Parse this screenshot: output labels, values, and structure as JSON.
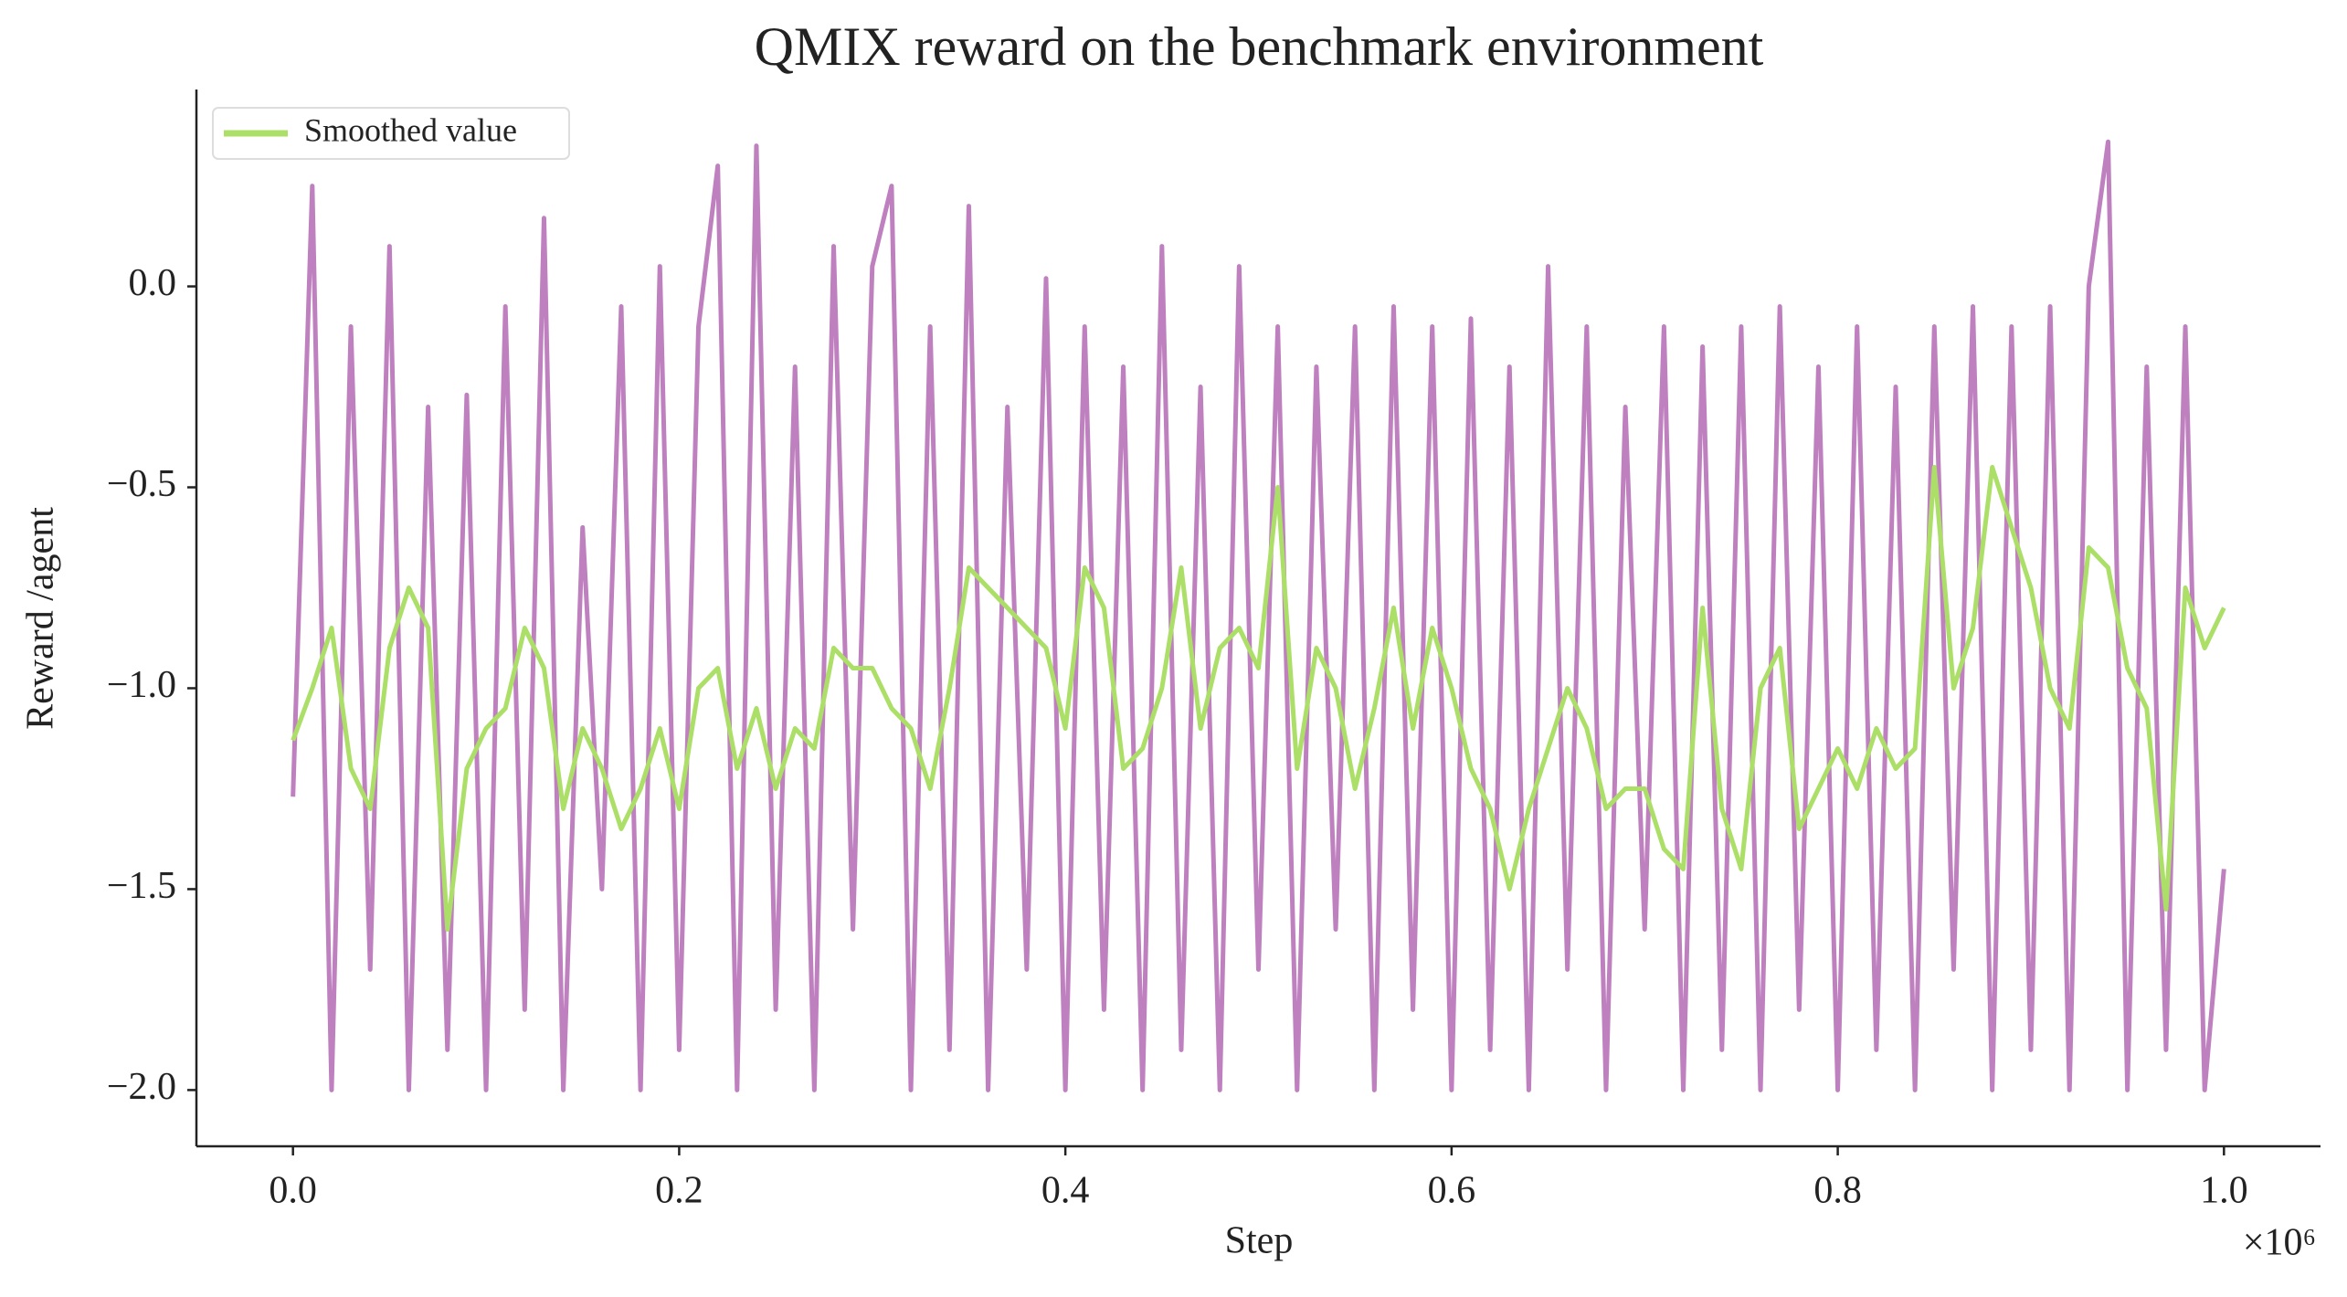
{
  "chart_data": {
    "type": "line",
    "title": "QMIX reward on the benchmark environment",
    "xlabel": "Step",
    "ylabel": "Reward /agent",
    "x_offset_label": "×10⁶",
    "x": [
      0,
      10000,
      20000,
      30000,
      40000,
      50000,
      60000,
      70000,
      80000,
      90000,
      100000,
      110000,
      120000,
      130000,
      140000,
      150000,
      160000,
      170000,
      180000,
      190000,
      200000,
      210000,
      220000,
      230000,
      240000,
      250000,
      260000,
      270000,
      280000,
      290000,
      300000,
      310000,
      320000,
      330000,
      340000,
      350000,
      360000,
      370000,
      380000,
      390000,
      400000,
      410000,
      420000,
      430000,
      440000,
      450000,
      460000,
      470000,
      480000,
      490000,
      500000,
      510000,
      520000,
      530000,
      540000,
      550000,
      560000,
      570000,
      580000,
      590000,
      600000,
      610000,
      620000,
      630000,
      640000,
      650000,
      660000,
      670000,
      680000,
      690000,
      700000,
      710000,
      720000,
      730000,
      740000,
      750000,
      760000,
      770000,
      780000,
      790000,
      800000,
      810000,
      820000,
      830000,
      840000,
      850000,
      860000,
      870000,
      880000,
      890000,
      900000,
      910000,
      920000,
      930000,
      940000,
      950000,
      960000,
      970000,
      980000,
      990000,
      1000000
    ],
    "series": [
      {
        "color": "#bf80bf",
        "values": [
          -1.27,
          0.25,
          -2.0,
          -0.1,
          -1.7,
          0.1,
          -2.0,
          -0.3,
          -1.9,
          -0.27,
          -2.0,
          -0.05,
          -1.8,
          0.17,
          -2.0,
          -0.6,
          -1.5,
          -0.05,
          -2.0,
          0.05,
          -1.9,
          -0.1,
          0.3,
          -2.0,
          0.35,
          -1.8,
          -0.2,
          -2.0,
          0.1,
          -1.6,
          0.05,
          0.25,
          -2.0,
          -0.1,
          -1.9,
          0.2,
          -2.0,
          -0.3,
          -1.7,
          0.02,
          -2.0,
          -0.1,
          -1.8,
          -0.2,
          -2.0,
          0.1,
          -1.9,
          -0.25,
          -2.0,
          0.05,
          -1.7,
          -0.1,
          -2.0,
          -0.2,
          -1.6,
          -0.1,
          -2.0,
          -0.05,
          -1.8,
          -0.1,
          -2.0,
          -0.08,
          -1.9,
          -0.2,
          -2.0,
          0.05,
          -1.7,
          -0.1,
          -2.0,
          -0.3,
          -1.6,
          -0.1,
          -2.0,
          -0.15,
          -1.9,
          -0.1,
          -2.0,
          -0.05,
          -1.8,
          -0.2,
          -2.0,
          -0.1,
          -1.9,
          -0.25,
          -2.0,
          -0.1,
          -1.7,
          -0.05,
          -2.0,
          -0.1,
          -1.9,
          -0.05,
          -2.0,
          0.0,
          0.36,
          -2.0,
          -0.2,
          -1.9,
          -0.1,
          -2.0,
          -1.45
        ]
      },
      {
        "name": "Smoothed value",
        "color": "#acdf67",
        "values": [
          -1.13,
          -1.0,
          -0.85,
          -1.2,
          -1.3,
          -0.9,
          -0.75,
          -0.85,
          -1.6,
          -1.2,
          -1.1,
          -1.05,
          -0.85,
          -0.95,
          -1.3,
          -1.1,
          -1.2,
          -1.35,
          -1.25,
          -1.1,
          -1.3,
          -1.0,
          -0.95,
          -1.2,
          -1.05,
          -1.25,
          -1.1,
          -1.15,
          -0.9,
          -0.95,
          -0.95,
          -1.05,
          -1.1,
          -1.25,
          -1.0,
          -0.7,
          -0.75,
          -0.8,
          -0.85,
          -0.9,
          -1.1,
          -0.7,
          -0.8,
          -1.2,
          -1.15,
          -1.0,
          -0.7,
          -1.1,
          -0.9,
          -0.85,
          -0.95,
          -0.5,
          -1.2,
          -0.9,
          -1.0,
          -1.25,
          -1.05,
          -0.8,
          -1.1,
          -0.85,
          -1.0,
          -1.2,
          -1.3,
          -1.5,
          -1.3,
          -1.15,
          -1.0,
          -1.1,
          -1.3,
          -1.25,
          -1.25,
          -1.4,
          -1.45,
          -0.8,
          -1.3,
          -1.45,
          -1.0,
          -0.9,
          -1.35,
          -1.25,
          -1.15,
          -1.25,
          -1.1,
          -1.2,
          -1.15,
          -0.45,
          -1.0,
          -0.85,
          -0.45,
          -0.6,
          -0.75,
          -1.0,
          -1.1,
          -0.65,
          -0.7,
          -0.95,
          -1.05,
          -1.55,
          -0.75,
          -0.9,
          -0.8
        ]
      }
    ],
    "xlim": [
      -50000,
      1050000
    ],
    "ylim": [
      -2.14,
      0.49
    ],
    "xticks": [
      {
        "value": 0,
        "label": "0.0"
      },
      {
        "value": 200000,
        "label": "0.2"
      },
      {
        "value": 400000,
        "label": "0.4"
      },
      {
        "value": 600000,
        "label": "0.6"
      },
      {
        "value": 800000,
        "label": "0.8"
      },
      {
        "value": 1000000,
        "label": "1.0"
      }
    ],
    "yticks": [
      {
        "value": -2,
        "label": "−2.0"
      },
      {
        "value": -1.5,
        "label": "−1.5"
      },
      {
        "value": -1,
        "label": "−1.0"
      },
      {
        "value": -0.5,
        "label": "−0.5"
      },
      {
        "value": 0,
        "label": "0.0"
      }
    ],
    "legend": "upper left",
    "grid": false
  }
}
